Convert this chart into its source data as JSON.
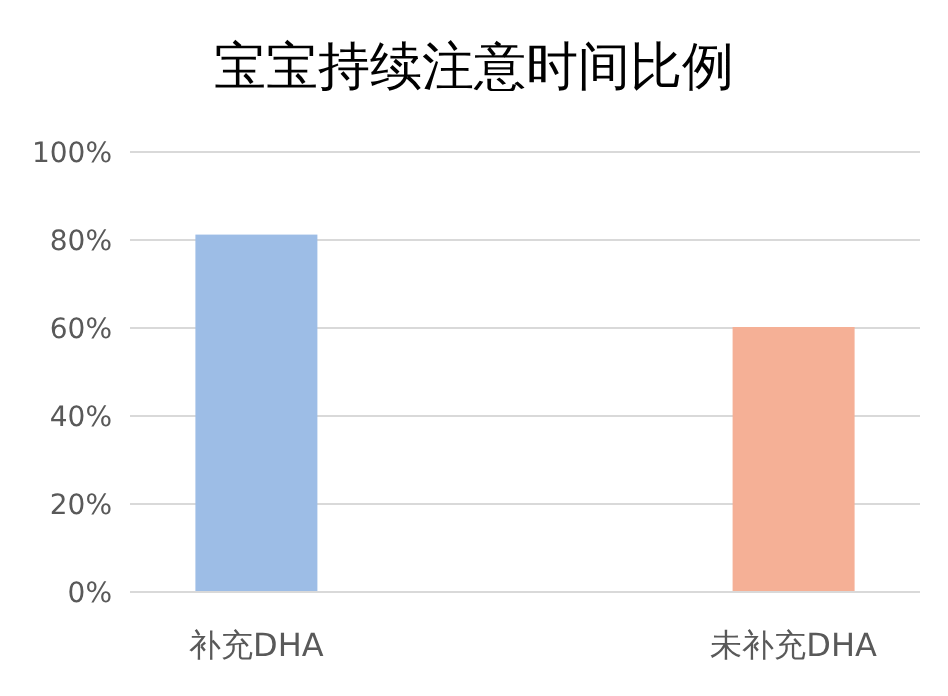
{
  "chart_data": {
    "type": "bar",
    "title": "宝宝持续注意时间比例",
    "categories": [
      "补充DHA",
      "未补充DHA"
    ],
    "values": [
      81,
      60
    ],
    "colors": [
      "#9dbde6",
      "#f5b096"
    ],
    "ylim": [
      0,
      100
    ],
    "yticks": [
      {
        "value": 0,
        "label": "0%"
      },
      {
        "value": 20,
        "label": "20%"
      },
      {
        "value": 40,
        "label": "40%"
      },
      {
        "value": 60,
        "label": "60%"
      },
      {
        "value": 80,
        "label": "80%"
      },
      {
        "value": 100,
        "label": "100%"
      }
    ],
    "grid": "y"
  }
}
